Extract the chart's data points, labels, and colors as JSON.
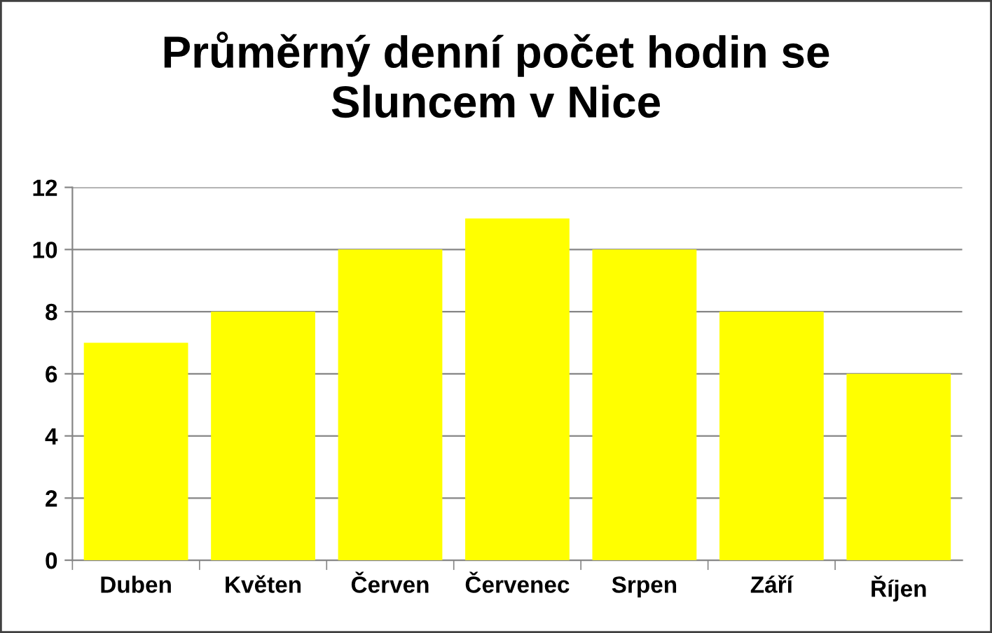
{
  "chart_data": {
    "type": "bar",
    "title": "Průměrný denní počet hodin se\nSluncem v Nice",
    "categories": [
      "Duben",
      "Květen",
      "Červen",
      "Červenec",
      "Srpen",
      "Září",
      "Říjen"
    ],
    "values": [
      7,
      8,
      10,
      11,
      10,
      8,
      6
    ],
    "color": "#ffff00",
    "ylim": [
      0,
      12
    ],
    "yticks": [
      0,
      2,
      4,
      6,
      8,
      10,
      12
    ],
    "grid": "y",
    "legend": false
  }
}
